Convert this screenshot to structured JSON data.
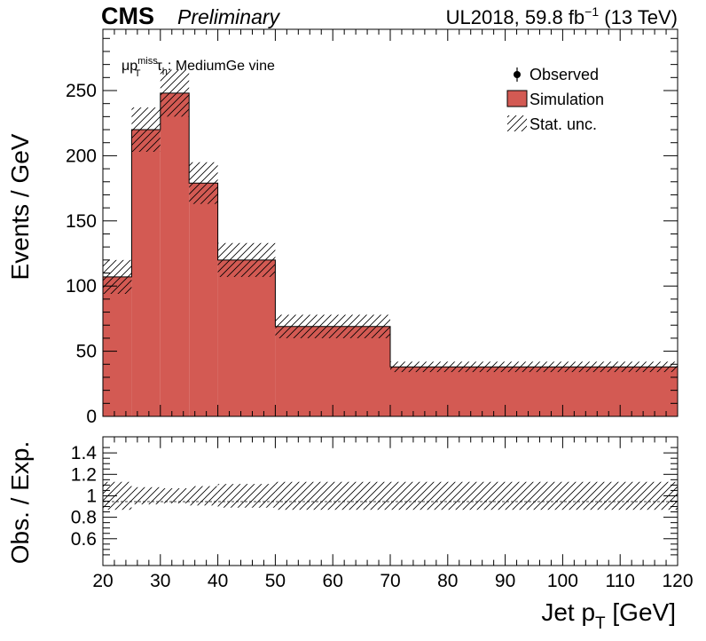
{
  "header": {
    "experiment": "CMS",
    "status": "Preliminary",
    "lumi_prefix": "UL2018, 59.8 fb",
    "lumi_sup": "−1",
    "lumi_suffix": " (13 TeV)"
  },
  "annotation": {
    "mu": "μp",
    "p_sup": "miss",
    "p_sub": "T",
    "tau": "τ",
    "tau_sub": "h",
    "rest": ": MediumGe vine"
  },
  "legend": {
    "placement": "top-right",
    "observed": "Observed",
    "simulation": "Simulation",
    "stat_unc": "Stat. unc."
  },
  "colors": {
    "simulation": "#d35a53",
    "hatch": "#000000"
  },
  "chart_data": [
    {
      "type": "bar",
      "panel": "main",
      "bin_edges": [
        20,
        25,
        30,
        35,
        40,
        50,
        70,
        120
      ],
      "series": [
        {
          "name": "Simulation",
          "values": [
            107,
            220,
            248,
            179,
            120,
            69,
            38
          ]
        }
      ],
      "stat_unc": [
        13,
        17,
        18,
        16,
        13,
        9,
        4
      ],
      "xlim": [
        20,
        120
      ],
      "ylim": [
        0,
        297
      ],
      "y_ticks": [
        0,
        50,
        100,
        150,
        200,
        250
      ],
      "ylabel": "Events / GeV"
    },
    {
      "type": "bar",
      "panel": "ratio",
      "bin_edges": [
        20,
        25,
        30,
        35,
        40,
        50,
        70,
        120
      ],
      "ratio_unc": [
        0.13,
        0.08,
        0.07,
        0.09,
        0.11,
        0.13,
        0.13
      ],
      "xlim": [
        20,
        120
      ],
      "ylim": [
        0.35,
        1.55
      ],
      "y_ticks": [
        0.6,
        0.8,
        1,
        1.2,
        1.4
      ],
      "y_tick_labels": [
        "0.6",
        "0.8",
        "1",
        "1.2",
        "1.4"
      ],
      "ylabel": "Obs. / Exp.",
      "x_ticks": [
        20,
        30,
        40,
        50,
        60,
        70,
        80,
        90,
        100,
        110,
        120
      ],
      "xlabel_main": "Jet p",
      "xlabel_sub": "T",
      "xlabel_unit": " [GeV]"
    }
  ]
}
